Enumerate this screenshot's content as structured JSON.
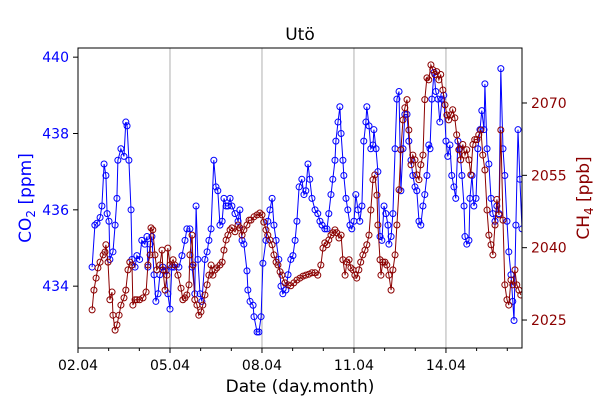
{
  "chart_data": {
    "type": "line",
    "title": "Utö",
    "xlabel": "Date (day.month)",
    "ylabel_left": {
      "main": "CO",
      "sub": "2",
      "unit": " [ppm]"
    },
    "ylabel_right": {
      "main": "CH",
      "sub": "4",
      "unit": " [ppb]"
    },
    "x_unit": "day of April",
    "xlim": [
      2.0,
      16.48
    ],
    "ylim_left": [
      432.38,
      440.24
    ],
    "ylim_right": [
      2019.2,
      2081.4
    ],
    "x_ticks": [
      {
        "v": 2,
        "label": "02.04"
      },
      {
        "v": 5,
        "label": "05.04"
      },
      {
        "v": 8,
        "label": "08.04"
      },
      {
        "v": 11,
        "label": "11.04"
      },
      {
        "v": 14,
        "label": "14.04"
      }
    ],
    "x_minor_ticks": [
      3,
      4,
      6,
      7,
      9,
      10,
      12,
      13,
      15,
      16
    ],
    "y_left_ticks": [
      "434",
      "436",
      "438",
      "440"
    ],
    "y_right_ticks": [
      "2025",
      "2040",
      "2055",
      "2070"
    ],
    "grid": "vertical lines at major x ticks",
    "colors": {
      "co2": "#0000ff",
      "ch4": "#8b0000",
      "grid": "#b0b0b0"
    },
    "series": [
      {
        "name": "CO2",
        "axis": "left",
        "color": "#0000ff",
        "x": [
          2.46,
          2.55,
          2.62,
          2.72,
          2.78,
          2.85,
          2.91,
          2.95,
          3.01,
          3.04,
          3.14,
          3.21,
          3.27,
          3.3,
          3.4,
          3.5,
          3.56,
          3.6,
          3.66,
          3.73,
          3.76,
          3.86,
          3.92,
          4.01,
          4.08,
          4.18,
          4.25,
          4.28,
          4.35,
          4.41,
          4.48,
          4.54,
          4.61,
          4.67,
          4.77,
          4.87,
          4.93,
          5.0,
          5.06,
          5.13,
          5.29,
          5.39,
          5.49,
          5.55,
          5.65,
          5.72,
          5.81,
          5.85,
          5.91,
          5.98,
          6.04,
          6.14,
          6.21,
          6.27,
          6.34,
          6.43,
          6.5,
          6.56,
          6.63,
          6.7,
          6.76,
          6.83,
          6.89,
          6.96,
          7.02,
          7.12,
          7.22,
          7.28,
          7.35,
          7.41,
          7.51,
          7.54,
          7.61,
          7.71,
          7.74,
          7.84,
          7.9,
          7.97,
          8.03,
          8.13,
          8.19,
          8.26,
          8.33,
          8.39,
          8.46,
          8.55,
          8.62,
          8.68,
          8.78,
          8.85,
          8.94,
          9.01,
          9.08,
          9.14,
          9.21,
          9.3,
          9.37,
          9.43,
          9.5,
          9.56,
          9.63,
          9.73,
          9.82,
          9.89,
          9.96,
          10.05,
          10.12,
          10.18,
          10.25,
          10.31,
          10.38,
          10.41,
          10.48,
          10.54,
          10.58,
          10.64,
          10.67,
          10.74,
          10.8,
          10.87,
          10.93,
          11.0,
          11.06,
          11.13,
          11.19,
          11.26,
          11.32,
          11.39,
          11.42,
          11.49,
          11.55,
          11.62,
          11.65,
          11.72,
          11.78,
          11.85,
          11.91,
          11.98,
          12.04,
          12.11,
          12.14,
          12.21,
          12.27,
          12.34,
          12.4,
          12.47,
          12.53,
          12.6,
          12.66,
          12.73,
          12.79,
          12.86,
          12.92,
          12.99,
          13.05,
          13.12,
          13.18,
          13.25,
          13.31,
          13.38,
          13.44,
          13.48,
          13.54,
          13.61,
          13.67,
          13.74,
          13.8,
          13.87,
          13.93,
          14.0,
          14.06,
          14.13,
          14.19,
          14.26,
          14.32,
          14.39,
          14.45,
          14.52,
          14.59,
          14.62,
          14.68,
          14.75,
          14.78,
          14.85,
          14.91,
          14.98,
          15.04,
          15.11,
          15.17,
          15.24,
          15.27,
          15.34,
          15.4,
          15.47,
          15.53,
          15.6,
          15.66,
          15.73,
          15.79,
          15.86,
          15.92,
          15.99,
          16.05,
          16.12,
          16.18,
          16.22,
          16.28,
          16.35,
          16.41,
          16.48
        ],
        "y": [
          434.5,
          435.6,
          435.65,
          435.8,
          436.1,
          437.2,
          436.9,
          435.9,
          435.7,
          434.7,
          434.9,
          435.6,
          436.3,
          437.3,
          437.6,
          437.4,
          438.3,
          438.2,
          437.3,
          436.0,
          434.7,
          434.5,
          434.8,
          434.7,
          435.2,
          435.1,
          435.3,
          434.5,
          435.1,
          435.3,
          434.3,
          433.6,
          433.8,
          434.3,
          434.5,
          434.4,
          433.8,
          433.4,
          434.5,
          434.5,
          434.5,
          434.8,
          435.2,
          435.5,
          435.5,
          434.5,
          433.8,
          436.1,
          434.7,
          433.8,
          433.6,
          434.7,
          434.9,
          435.2,
          435.5,
          437.3,
          436.6,
          436.5,
          435.6,
          435.7,
          436.3,
          436.1,
          436.1,
          436.3,
          436.1,
          435.9,
          435.7,
          436.0,
          435.2,
          435.1,
          434.4,
          433.9,
          433.6,
          433.5,
          433.2,
          432.8,
          432.8,
          433.2,
          434.6,
          435.2,
          435.7,
          436.0,
          436.3,
          435.6,
          435.2,
          434.7,
          434.0,
          433.8,
          433.9,
          434.3,
          434.7,
          434.8,
          435.2,
          435.7,
          436.6,
          436.8,
          436.4,
          436.5,
          437.2,
          436.8,
          436.3,
          436.0,
          435.9,
          435.7,
          435.6,
          435.5,
          435.5,
          435.9,
          436.4,
          436.8,
          437.3,
          437.8,
          438.3,
          438.7,
          438.0,
          437.3,
          436.9,
          436.3,
          436.0,
          435.6,
          435.5,
          435.7,
          436.4,
          436.0,
          435.7,
          436.1,
          437.8,
          438.3,
          438.7,
          438.2,
          437.6,
          437.7,
          438.1,
          437.6,
          437.0,
          435.3,
          435.2,
          436.1,
          435.9,
          435.6,
          435.1,
          435.3,
          435.9,
          437.6,
          438.9,
          439.1,
          436.5,
          437.6,
          438.5,
          438.5,
          437.8,
          437.3,
          436.9,
          436.6,
          436.5,
          435.7,
          435.6,
          436.1,
          436.4,
          436.9,
          437.7,
          437.6,
          438.9,
          439.6,
          439.1,
          438.9,
          438.3,
          438.9,
          439.0,
          437.8,
          437.4,
          437.7,
          436.9,
          436.6,
          436.3,
          437.8,
          437.6,
          436.9,
          436.1,
          435.3,
          435.1,
          435.2,
          436.3,
          436.9,
          436.1,
          436.3,
          437.6,
          438.1,
          438.6,
          438.1,
          439.3,
          437.6,
          437.2,
          436.3,
          435.9,
          435.7,
          436.1,
          435.9,
          439.7,
          437.6,
          436.9,
          435.7,
          434.9,
          434.3,
          433.6,
          433.1,
          435.6,
          438.1,
          436.8,
          435.5
        ]
      },
      {
        "name": "CH4",
        "axis": "right",
        "color": "#8b0000",
        "x": [
          2.46,
          2.52,
          2.59,
          2.65,
          2.72,
          2.82,
          2.88,
          2.91,
          2.98,
          3.04,
          3.11,
          3.14,
          3.21,
          3.27,
          3.34,
          3.4,
          3.5,
          3.56,
          3.63,
          3.69,
          3.76,
          3.79,
          3.86,
          3.92,
          4.01,
          4.12,
          4.22,
          4.28,
          4.35,
          4.38,
          4.44,
          4.51,
          4.57,
          4.67,
          4.74,
          4.77,
          4.84,
          4.9,
          4.93,
          5.0,
          5.1,
          5.16,
          5.26,
          5.36,
          5.42,
          5.49,
          5.55,
          5.62,
          5.65,
          5.72,
          5.75,
          5.81,
          5.88,
          5.94,
          6.01,
          6.07,
          6.14,
          6.21,
          6.27,
          6.34,
          6.4,
          6.47,
          6.53,
          6.63,
          6.7,
          6.76,
          6.83,
          6.89,
          6.96,
          7.02,
          7.12,
          7.22,
          7.28,
          7.35,
          7.41,
          7.51,
          7.58,
          7.64,
          7.74,
          7.84,
          7.93,
          8.0,
          8.06,
          8.13,
          8.19,
          8.26,
          8.33,
          8.39,
          8.46,
          8.52,
          8.59,
          8.65,
          8.75,
          8.85,
          8.94,
          9.04,
          9.14,
          9.24,
          9.34,
          9.43,
          9.53,
          9.63,
          9.73,
          9.82,
          9.92,
          9.99,
          10.05,
          10.12,
          10.18,
          10.25,
          10.31,
          10.38,
          10.44,
          10.51,
          10.58,
          10.64,
          10.71,
          10.77,
          10.84,
          10.9,
          10.97,
          11.03,
          11.09,
          11.16,
          11.22,
          11.29,
          11.36,
          11.42,
          11.49,
          11.55,
          11.62,
          11.68,
          11.75,
          11.78,
          11.85,
          11.88,
          11.94,
          12.01,
          12.07,
          12.14,
          12.21,
          12.27,
          12.34,
          12.4,
          12.47,
          12.53,
          12.6,
          12.66,
          12.73,
          12.79,
          12.86,
          12.92,
          12.99,
          13.05,
          13.12,
          13.18,
          13.25,
          13.31,
          13.38,
          13.44,
          13.51,
          13.57,
          13.64,
          13.7,
          13.77,
          13.83,
          13.9,
          13.97,
          14.03,
          14.09,
          14.16,
          14.22,
          14.29,
          14.35,
          14.42,
          14.48,
          14.55,
          14.62,
          14.68,
          14.75,
          14.81,
          14.88,
          14.94,
          15.01,
          15.07,
          15.14,
          15.2,
          15.27,
          15.34,
          15.4,
          15.47,
          15.53,
          15.6,
          15.66,
          15.73,
          15.79,
          15.86,
          15.92,
          15.99,
          16.05,
          16.12,
          16.18,
          16.25,
          16.31,
          16.38,
          16.44
        ],
        "y": [
          2027.1,
          2031.2,
          2033.7,
          2035.8,
          2037.0,
          2038.5,
          2039.1,
          2040.6,
          2037.0,
          2029.2,
          2030.8,
          2026.0,
          2022.9,
          2024.0,
          2026.0,
          2028.1,
          2029.6,
          2031.2,
          2035.4,
          2037.0,
          2036.4,
          2028.1,
          2029.2,
          2029.2,
          2029.2,
          2029.6,
          2030.8,
          2036.4,
          2038.5,
          2044.1,
          2043.7,
          2038.5,
          2035.4,
          2036.4,
          2039.5,
          2035.4,
          2031.2,
          2034.3,
          2039.9,
          2036.4,
          2037.5,
          2036.4,
          2034.3,
          2031.6,
          2029.2,
          2029.6,
          2030.2,
          2032.3,
          2038.5,
          2042.6,
          2036.4,
          2029.2,
          2028.1,
          2026.0,
          2026.7,
          2028.1,
          2030.2,
          2032.3,
          2034.3,
          2036.4,
          2034.3,
          2035.4,
          2035.8,
          2036.4,
          2037.0,
          2039.5,
          2041.6,
          2042.6,
          2043.7,
          2044.1,
          2043.3,
          2044.7,
          2044.1,
          2042.6,
          2043.7,
          2044.7,
          2045.7,
          2045.7,
          2046.4,
          2046.8,
          2047.2,
          2046.8,
          2045.3,
          2043.7,
          2042.6,
          2041.6,
          2040.6,
          2038.5,
          2037.0,
          2036.4,
          2035.0,
          2034.3,
          2032.7,
          2032.3,
          2032.1,
          2032.7,
          2033.3,
          2033.7,
          2034.1,
          2034.3,
          2034.5,
          2034.8,
          2034.8,
          2034.3,
          2036.4,
          2039.9,
          2041.0,
          2040.6,
          2041.6,
          2042.6,
          2043.1,
          2043.7,
          2043.1,
          2042.0,
          2042.6,
          2037.5,
          2034.3,
          2037.0,
          2037.5,
          2035.8,
          2035.4,
          2034.3,
          2033.7,
          2035.4,
          2037.0,
          2038.5,
          2039.5,
          2040.6,
          2042.6,
          2047.8,
          2054.1,
          2055.1,
          2050.9,
          2044.7,
          2037.5,
          2034.3,
          2037.0,
          2037.0,
          2036.4,
          2034.3,
          2031.2,
          2035.4,
          2038.5,
          2044.7,
          2052.0,
          2060.3,
          2066.5,
          2069.0,
          2070.7,
          2064.4,
          2057.2,
          2059.2,
          2058.2,
          2055.1,
          2054.1,
          2057.2,
          2059.2,
          2070.7,
          2075.2,
          2074.8,
          2077.9,
          2076.9,
          2075.9,
          2076.5,
          2074.8,
          2075.9,
          2072.7,
          2069.6,
          2067.5,
          2066.5,
          2067.5,
          2068.6,
          2066.9,
          2063.4,
          2060.3,
          2058.2,
          2061.4,
          2059.2,
          2060.3,
          2058.2,
          2055.1,
          2061.4,
          2062.4,
          2062.4,
          2063.4,
          2064.4,
          2059.2,
          2056.1,
          2047.8,
          2042.6,
          2040.6,
          2038.5,
          2044.7,
          2050.0,
          2046.8,
          2064.4,
          2045.7,
          2032.3,
          2029.2,
          2028.1,
          2033.3,
          2032.3,
          2035.4,
          2032.3,
          2031.2,
          2030.2
        ]
      }
    ]
  }
}
